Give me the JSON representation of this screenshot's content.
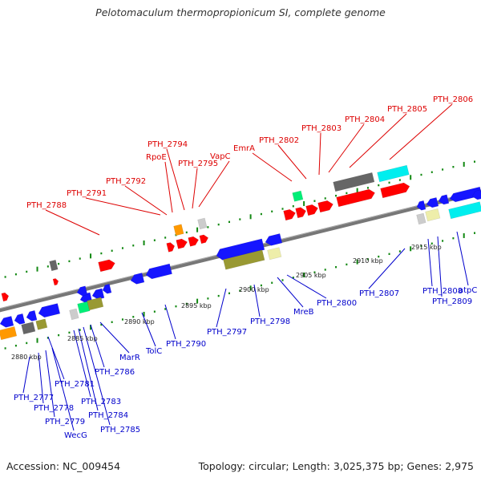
{
  "header": {
    "title": "Pelotomaculum thermopropionicum SI, complete genome"
  },
  "footer": {
    "accession": "Accession: NC_009454",
    "summary": "Topology: circular; Length: 3,025,375 bp; Genes: 2,975"
  },
  "legend_colors": {
    "forward_label": "#dd0000",
    "reverse_label": "#0000cc",
    "tick": "#118811",
    "backbone": "#777777",
    "gene_colors": [
      "#ff0000",
      "#1515ff",
      "#00eeee",
      "#666666",
      "#ff9900",
      "#00ee77",
      "#999933",
      "#eeeeaa",
      "#cccccc"
    ]
  },
  "scale": {
    "kbp_labels": [
      "2880 kbp",
      "2885 kbp",
      "2890 kbp",
      "2895 kbp",
      "2900 kbp",
      "2905 kbp",
      "2910 kbp",
      "2915 kbp"
    ]
  },
  "forward_genes": [
    "PTH_2788",
    "PTH_2791",
    "PTH_2792",
    "RpoE",
    "PTH_2794",
    "PTH_2795",
    "VapC",
    "EmrA",
    "PTH_2802",
    "PTH_2803",
    "PTH_2804",
    "PTH_2805",
    "PTH_2806"
  ],
  "reverse_genes": [
    "PTH_2777",
    "PTH_2778",
    "PTH_2779",
    "WecG",
    "PTH_2781",
    "PTH_2783",
    "PTH_2784",
    "PTH_2785",
    "PTH_2786",
    "MarR",
    "TolC",
    "PTH_2790",
    "PTH_2797",
    "PTH_2798",
    "MreB",
    "PTH_2800",
    "PTH_2807",
    "PTH_2808",
    "PTH_2809",
    "atpC"
  ]
}
